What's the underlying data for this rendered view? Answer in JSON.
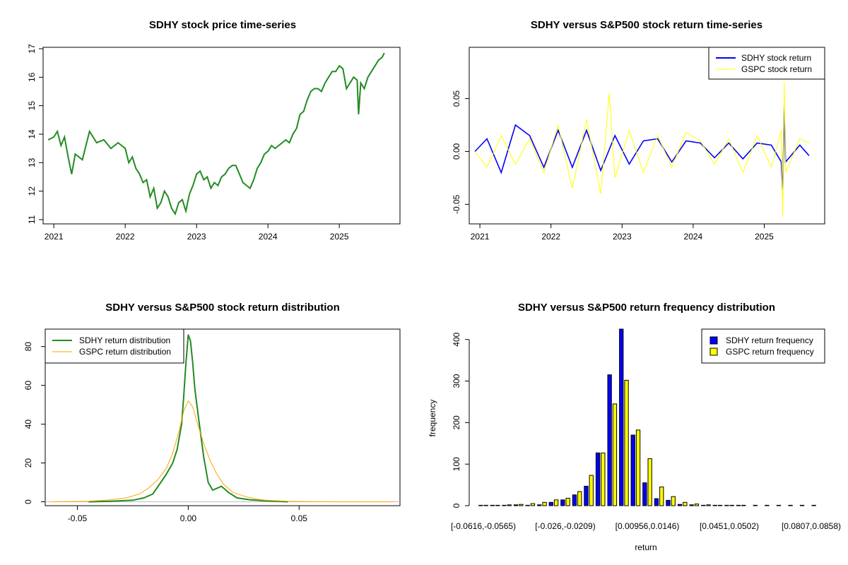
{
  "chart_data": [
    {
      "type": "line",
      "title": "SDHY stock price time-series",
      "xlabel": "",
      "ylabel": "",
      "xlim": [
        2020.85,
        2025.85
      ],
      "ylim": [
        10.85,
        17.05
      ],
      "xticks": [
        "2021",
        "2022",
        "2023",
        "2024",
        "2025"
      ],
      "yticks": [
        "11",
        "12",
        "13",
        "14",
        "15",
        "16",
        "17"
      ],
      "color": "#228B22",
      "series": [
        {
          "x": [
            2020.92,
            2021.0,
            2021.05,
            2021.1,
            2021.15,
            2021.2,
            2021.25,
            2021.3,
            2021.4,
            2021.45,
            2021.5,
            2021.6,
            2021.7,
            2021.8,
            2021.9,
            2021.95,
            2022.0,
            2022.05,
            2022.1,
            2022.15,
            2022.2,
            2022.25,
            2022.3,
            2022.35,
            2022.4,
            2022.45,
            2022.5,
            2022.55,
            2022.6,
            2022.65,
            2022.7,
            2022.75,
            2022.8,
            2022.85,
            2022.9,
            2022.95,
            2023.0,
            2023.05,
            2023.1,
            2023.15,
            2023.2,
            2023.25,
            2023.3,
            2023.35,
            2023.4,
            2023.45,
            2023.5,
            2023.55,
            2023.6,
            2023.65,
            2023.7,
            2023.75,
            2023.8,
            2023.85,
            2023.9,
            2023.95,
            2024.0,
            2024.05,
            2024.1,
            2024.15,
            2024.2,
            2024.25,
            2024.3,
            2024.35,
            2024.4,
            2024.45,
            2024.5,
            2024.55,
            2024.6,
            2024.65,
            2024.7,
            2024.75,
            2024.8,
            2024.85,
            2024.9,
            2024.95,
            2025.0,
            2025.05,
            2025.1,
            2025.15,
            2025.2,
            2025.25,
            2025.27,
            2025.3,
            2025.35,
            2025.4,
            2025.45,
            2025.5,
            2025.55,
            2025.6,
            2025.63
          ],
          "y": [
            13.8,
            13.9,
            14.1,
            13.6,
            13.9,
            13.2,
            12.6,
            13.3,
            13.1,
            13.6,
            14.1,
            13.7,
            13.8,
            13.5,
            13.7,
            13.6,
            13.5,
            13.0,
            13.2,
            12.8,
            12.6,
            12.3,
            12.4,
            11.8,
            12.1,
            11.4,
            11.6,
            12.0,
            11.8,
            11.4,
            11.2,
            11.6,
            11.7,
            11.3,
            11.9,
            12.2,
            12.6,
            12.7,
            12.4,
            12.5,
            12.1,
            12.3,
            12.2,
            12.5,
            12.6,
            12.8,
            12.9,
            12.9,
            12.6,
            12.3,
            12.2,
            12.1,
            12.4,
            12.8,
            13.0,
            13.3,
            13.4,
            13.6,
            13.5,
            13.6,
            13.7,
            13.8,
            13.7,
            14.0,
            14.2,
            14.7,
            14.8,
            15.2,
            15.5,
            15.6,
            15.6,
            15.5,
            15.8,
            16.0,
            16.2,
            16.2,
            16.4,
            16.3,
            15.6,
            15.8,
            16.0,
            15.9,
            14.7,
            15.8,
            15.6,
            16.0,
            16.2,
            16.4,
            16.6,
            16.7,
            16.85
          ]
        }
      ]
    },
    {
      "type": "line",
      "title": "SDHY versus S&P500 stock return time-series",
      "xlabel": "",
      "ylabel": "",
      "xlim": [
        2020.85,
        2025.85
      ],
      "ylim": [
        -0.0685,
        0.0985
      ],
      "xticks": [
        "2021",
        "2022",
        "2023",
        "2024",
        "2025"
      ],
      "yticks": [
        "-0.05",
        "0.00",
        "0.05"
      ],
      "legend": "top-right",
      "series": [
        {
          "name": "SDHY stock return",
          "color": "#0000FF",
          "x": [
            2020.93,
            2021.1,
            2021.3,
            2021.5,
            2021.7,
            2021.9,
            2022.1,
            2022.3,
            2022.5,
            2022.7,
            2022.9,
            2023.1,
            2023.3,
            2023.5,
            2023.7,
            2023.9,
            2024.1,
            2024.3,
            2024.5,
            2024.7,
            2024.9,
            2025.1,
            2025.24,
            2025.26,
            2025.28,
            2025.3,
            2025.5,
            2025.63
          ],
          "y": [
            0.0,
            0.012,
            -0.02,
            0.025,
            0.015,
            -0.015,
            0.02,
            -0.015,
            0.02,
            -0.018,
            0.015,
            -0.012,
            0.01,
            0.012,
            -0.01,
            0.01,
            0.008,
            -0.006,
            0.008,
            -0.007,
            0.008,
            0.006,
            -0.01,
            -0.042,
            0.042,
            -0.01,
            0.006,
            -0.004
          ]
        },
        {
          "name": "GSPC stock return",
          "color": "#FFFF00",
          "x": [
            2020.93,
            2021.1,
            2021.3,
            2021.5,
            2021.7,
            2021.9,
            2022.1,
            2022.3,
            2022.5,
            2022.7,
            2022.82,
            2022.9,
            2023.1,
            2023.3,
            2023.5,
            2023.7,
            2023.9,
            2024.1,
            2024.3,
            2024.5,
            2024.7,
            2024.9,
            2025.1,
            2025.24,
            2025.26,
            2025.28,
            2025.3,
            2025.5,
            2025.63
          ],
          "y": [
            0.0,
            -0.015,
            0.015,
            -0.012,
            0.012,
            -0.02,
            0.025,
            -0.035,
            0.03,
            -0.04,
            0.055,
            -0.025,
            0.02,
            -0.02,
            0.015,
            -0.015,
            0.018,
            0.01,
            -0.012,
            0.012,
            -0.02,
            0.015,
            -0.015,
            0.02,
            -0.062,
            0.066,
            -0.02,
            0.012,
            0.008
          ]
        }
      ]
    },
    {
      "type": "line",
      "title": "SDHY versus S&P500 stock return distribution",
      "xlabel": "",
      "ylabel": "",
      "xlim": [
        -0.0645,
        0.0955
      ],
      "ylim": [
        -2,
        89
      ],
      "xticks": [
        "-0.05",
        "0.00",
        "0.05"
      ],
      "yticks": [
        "0",
        "20",
        "40",
        "60",
        "80"
      ],
      "legend": "top-left",
      "series": [
        {
          "name": "SDHY return distribution",
          "color": "#228B22",
          "x": [
            -0.045,
            -0.035,
            -0.025,
            -0.02,
            -0.016,
            -0.013,
            -0.01,
            -0.007,
            -0.005,
            -0.003,
            -0.002,
            -0.001,
            0.0,
            0.001,
            0.002,
            0.003,
            0.005,
            0.007,
            0.009,
            0.011,
            0.013,
            0.015,
            0.018,
            0.022,
            0.028,
            0.035,
            0.045
          ],
          "y": [
            0,
            0.3,
            0.8,
            2,
            4,
            9,
            14,
            20,
            27,
            40,
            55,
            72,
            86,
            83,
            72,
            58,
            40,
            23,
            10,
            6,
            7,
            8,
            5,
            2,
            1,
            0.5,
            0
          ]
        },
        {
          "name": "GSPC return distribution",
          "color": "#FFA500",
          "x": [
            -0.062,
            -0.045,
            -0.035,
            -0.028,
            -0.022,
            -0.018,
            -0.014,
            -0.01,
            -0.007,
            -0.004,
            -0.002,
            0.0,
            0.002,
            0.004,
            0.007,
            0.01,
            0.013,
            0.016,
            0.02,
            0.025,
            0.03,
            0.035,
            0.045,
            0.055,
            0.07,
            0.093
          ],
          "y": [
            0,
            0.3,
            1,
            2,
            4,
            7,
            11,
            17,
            25,
            37,
            47,
            52,
            49,
            41,
            30,
            21,
            14,
            9,
            5,
            3,
            1.5,
            0.8,
            0.3,
            0.1,
            0,
            0
          ]
        }
      ]
    },
    {
      "type": "bar",
      "title": "SDHY versus S&P500 return frequency distribution",
      "xlabel": "return",
      "ylabel": "frequency",
      "ylim": [
        0,
        425
      ],
      "yticks": [
        "0",
        "100",
        "200",
        "300",
        "400"
      ],
      "legend": "top-right",
      "categories": [
        "[-0.0616,-0.0565)",
        "[-0.0565,-0.0514)",
        "[-0.0514,-0.0463)",
        "[-0.0463,-0.0413)",
        "[-0.0413,-0.0362)",
        "[-0.0362,-0.0311)",
        "[-0.0311,-0.026)",
        "[-0.026,-0.0209)",
        "[-0.0209,-0.0158)",
        "[-0.0158,-0.0107)",
        "[-0.0107,-0.00563)",
        "[-0.00563,-0.000537)",
        "[-0.000537,0.00456)",
        "[0.00456,0.00956)",
        "[0.00956,0.0146)",
        "[0.0146,0.0197)",
        "[0.0197,0.0248)",
        "[0.0248,0.0299)",
        "[0.0299,0.035)",
        "[0.035,0.0401)",
        "[0.0401,0.0451)",
        "[0.0451,0.0502)",
        "[0.0502,0.0553)",
        "[0.0553,0.0604)",
        "[0.0604,0.0655)",
        "[0.0655,0.0706)",
        "[0.0706,0.0756)",
        "[0.0756,0.0807)",
        "[0.0807,0.0858)"
      ],
      "xtick_labels": [
        "[-0.0616,-0.0565)",
        "[-0.026,-0.0209)",
        "[0.00956,0.0146)",
        "[0.0451,0.0502)",
        "[0.0807,0.0858)"
      ],
      "series": [
        {
          "name": "SDHY return frequency",
          "color": "#0000FF",
          "values": [
            1,
            1,
            1,
            2,
            1,
            2,
            8,
            14,
            26,
            47,
            127,
            315,
            425,
            170,
            55,
            17,
            13,
            3,
            2,
            1,
            1,
            1,
            1,
            0,
            0,
            0,
            0,
            0,
            0
          ]
        },
        {
          "name": "GSPC return frequency",
          "color": "#FFFF00",
          "values": [
            1,
            1,
            2,
            3,
            5,
            8,
            14,
            18,
            34,
            73,
            127,
            245,
            302,
            182,
            113,
            45,
            22,
            8,
            4,
            2,
            1,
            1,
            1,
            1,
            1,
            1,
            1,
            1,
            1
          ]
        }
      ]
    }
  ]
}
